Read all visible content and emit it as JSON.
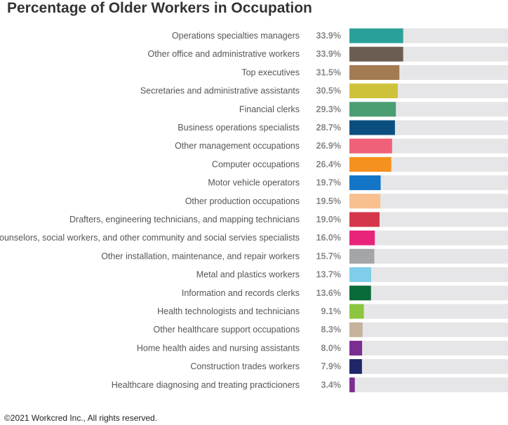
{
  "title": "Percentage of Older Workers in Occupation",
  "footer": "©2021 Workcred Inc., All rights reserved.",
  "chart_data": {
    "type": "bar",
    "orientation": "horizontal",
    "title": "Percentage of Older Workers in Occupation",
    "xlim": [
      0,
      100
    ],
    "grid": false,
    "track_color": "#e6e6e8",
    "categories": [
      "Operations specialties managers",
      "Other office and administrative workers",
      "Top executives",
      "Secretaries and administrative assistants",
      "Financial clerks",
      "Business operations specialists",
      "Other management occupations",
      "Computer occupations",
      "Motor vehicle operators",
      "Other production occupations",
      "Drafters, engineering technicians, and mapping technicians",
      "Counselors, social workers, and other community and social servies specialists",
      "Other installation, maintenance, and repair workers",
      "Metal and plastics workers",
      "Information and records clerks",
      "Health technologists and technicians",
      "Other healthcare support occupations",
      "Home health aides and nursing assistants",
      "Construction trades workers",
      "Healthcare diagnosing and treating practicioners"
    ],
    "values": [
      33.9,
      33.9,
      31.5,
      30.5,
      29.3,
      28.7,
      26.9,
      26.4,
      19.7,
      19.5,
      19.0,
      16.0,
      15.7,
      13.7,
      13.6,
      9.1,
      8.3,
      8.0,
      7.9,
      3.4
    ],
    "value_labels": [
      "33.9%",
      "33.9%",
      "31.5%",
      "30.5%",
      "29.3%",
      "28.7%",
      "26.9%",
      "26.4%",
      "19.7%",
      "19.5%",
      "19.0%",
      "16.0%",
      "15.7%",
      "13.7%",
      "13.6%",
      "9.1%",
      "8.3%",
      "8.0%",
      "7.9%",
      "3.4%"
    ],
    "colors": [
      "#2aa198",
      "#6b5d52",
      "#a47a51",
      "#cfc23b",
      "#4b9e72",
      "#0b4f80",
      "#ef6178",
      "#f5921f",
      "#1375c6",
      "#f8c08e",
      "#d5364a",
      "#e8237a",
      "#a4a5a8",
      "#7fcde8",
      "#0a6b3a",
      "#8cc63f",
      "#c5b39b",
      "#7a2e91",
      "#1f2566",
      "#7b2d90"
    ]
  }
}
